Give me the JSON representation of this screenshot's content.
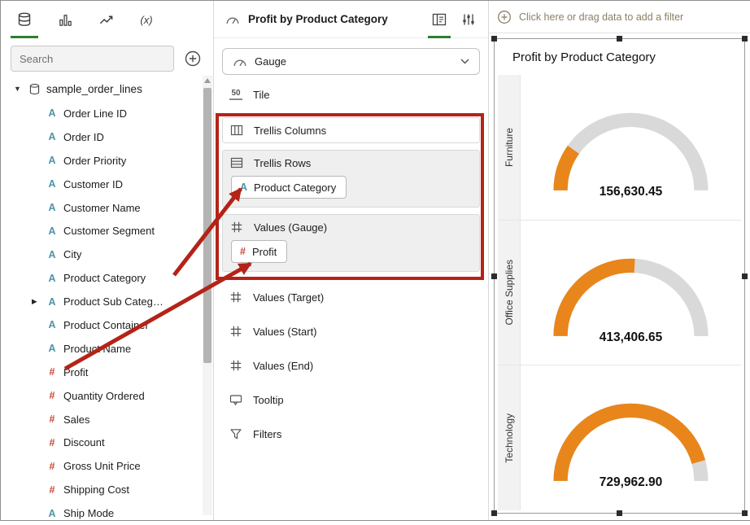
{
  "colors": {
    "accent_green": "#2e7d32",
    "attribute_teal": "#4e93a8",
    "measure_red": "#c74634",
    "gauge_fill": "#e8861c",
    "gauge_track": "#d9d9d9",
    "annotation_red": "#b42318",
    "filter_text": "#8e7f65"
  },
  "icons": {
    "attribute_glyph": "A",
    "measure_glyph": "#",
    "fx_glyph": "(x)",
    "tile_glyph": "50",
    "dataset_caret": "▼",
    "expand_caret": "▶"
  },
  "left_panel": {
    "search_placeholder": "Search",
    "dataset_name": "sample_order_lines",
    "fields": [
      {
        "type": "attribute",
        "label": "Order Line ID"
      },
      {
        "type": "attribute",
        "label": "Order ID"
      },
      {
        "type": "attribute",
        "label": "Order Priority"
      },
      {
        "type": "attribute",
        "label": "Customer ID"
      },
      {
        "type": "attribute",
        "label": "Customer Name"
      },
      {
        "type": "attribute",
        "label": "Customer Segment"
      },
      {
        "type": "attribute",
        "label": "City"
      },
      {
        "type": "attribute",
        "label": "Product Category"
      },
      {
        "type": "attribute",
        "label": "Product Sub Categ…",
        "expandable": true
      },
      {
        "type": "attribute",
        "label": "Product Container"
      },
      {
        "type": "attribute",
        "label": "Product Name"
      },
      {
        "type": "measure",
        "label": "Profit"
      },
      {
        "type": "measure",
        "label": "Quantity Ordered"
      },
      {
        "type": "measure",
        "label": "Sales"
      },
      {
        "type": "measure",
        "label": "Discount"
      },
      {
        "type": "measure",
        "label": "Gross Unit Price"
      },
      {
        "type": "measure",
        "label": "Shipping Cost"
      },
      {
        "type": "attribute",
        "label": "Ship Mode"
      }
    ]
  },
  "grammar": {
    "title": "Profit by Product Category",
    "viz_selector": "Gauge",
    "tile": "Tile",
    "trellis_columns": "Trellis Columns",
    "trellis_rows": "Trellis Rows",
    "trellis_rows_pill": "Product Category",
    "values_gauge": "Values (Gauge)",
    "values_gauge_pill": "Profit",
    "values_target": "Values (Target)",
    "values_start": "Values (Start)",
    "values_end": "Values (End)",
    "tooltip": "Tooltip",
    "filters": "Filters"
  },
  "canvas": {
    "filter_prompt": "Click here or drag data to add a filter",
    "viz_title": "Profit by Product Category"
  },
  "chart_data": {
    "type": "gauge",
    "title": "Profit by Product Category",
    "trellis_row_field": "Product Category",
    "measure": "Profit",
    "gauge_min": 0,
    "gauge_max": 800000,
    "rows": [
      {
        "category": "Furniture",
        "value": 156630.45,
        "label": "156,630.45"
      },
      {
        "category": "Office Supplies",
        "value": 413406.65,
        "label": "413,406.65"
      },
      {
        "category": "Technology",
        "value": 729962.9,
        "label": "729,962.90"
      }
    ]
  }
}
